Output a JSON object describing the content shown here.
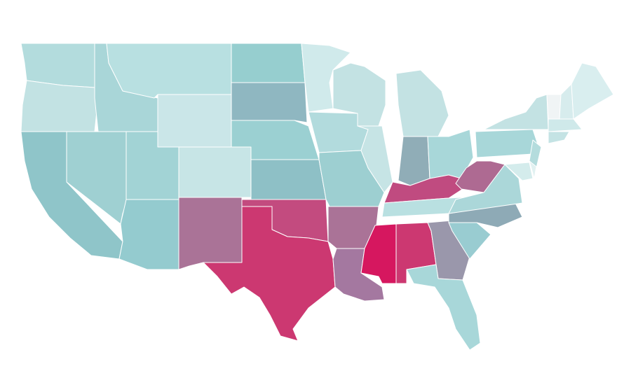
{
  "map": {
    "regions": [
      {
        "color": "#b3dcdd"
      },
      {
        "color": "#c2e2e3"
      },
      {
        "color": "#8fc5c9"
      },
      {
        "color": "#9fd0d2"
      },
      {
        "color": "#a9d6d8"
      },
      {
        "color": "#b8e0e1"
      },
      {
        "color": "#cae6e8"
      },
      {
        "color": "#a2d3d5"
      },
      {
        "color": "#94cbcf"
      },
      {
        "color": "#c7e5e6"
      },
      {
        "color": "#aa7397"
      },
      {
        "color": "#96cecf"
      },
      {
        "color": "#8fb7c1"
      },
      {
        "color": "#9bd0d2"
      },
      {
        "color": "#8ec0c6"
      },
      {
        "color": "#c34b7f"
      },
      {
        "color": "#cc3871"
      },
      {
        "color": "#d0eaeb"
      },
      {
        "color": "#b2dbdd"
      },
      {
        "color": "#9dcfd1"
      },
      {
        "color": "#aa7397"
      },
      {
        "color": "#a478a0"
      },
      {
        "color": "#c3e2e3"
      },
      {
        "color": "#c6e4e5"
      },
      {
        "color": "#c3e2e3"
      },
      {
        "color": "#90adb7"
      },
      {
        "color": "#a8d7d9"
      },
      {
        "color": "#c04b80"
      },
      {
        "color": "#b9e0e1"
      },
      {
        "color": "#d6175f"
      },
      {
        "color": "#cc3871"
      },
      {
        "color": "#9a97ab"
      },
      {
        "color": "#a8d7d9"
      },
      {
        "color": "#99ccd1"
      },
      {
        "color": "#8eaab6"
      },
      {
        "color": "#abd7d9"
      },
      {
        "color": "#ae6a92"
      },
      {
        "color": "#a8d7d9"
      },
      {
        "color": "#c3e2e3"
      },
      {
        "color": "#b4dcdd"
      },
      {
        "color": "#d4ecec"
      },
      {
        "color": "#e1f1f1"
      },
      {
        "color": "#f0f4f5"
      },
      {
        "color": "#d7eced"
      },
      {
        "color": "#d9eeef"
      },
      {
        "color": "#cfe9ea"
      },
      {
        "color": "#c4e3e4"
      }
    ]
  }
}
